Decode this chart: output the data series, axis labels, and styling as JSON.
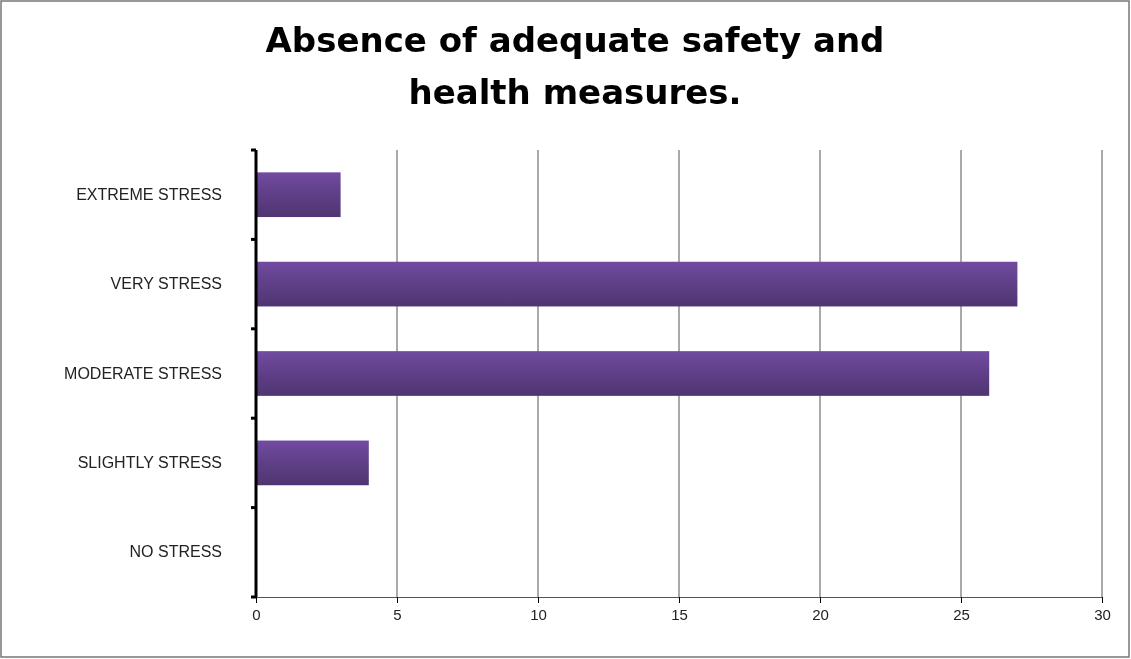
{
  "chart_data": {
    "type": "bar",
    "orientation": "horizontal",
    "title": "Absence of adequate safety and health measures.",
    "categories": [
      "EXTREME STRESS",
      "VERY STRESS",
      "MODERATE STRESS",
      "SLIGHTLY STRESS",
      "NO STRESS"
    ],
    "values": [
      3,
      27,
      26,
      4,
      0
    ],
    "color": "#5f3f87",
    "xlim": [
      0,
      30
    ],
    "xticks": [
      0,
      5,
      10,
      15,
      20,
      25,
      30
    ],
    "grid": "x"
  }
}
